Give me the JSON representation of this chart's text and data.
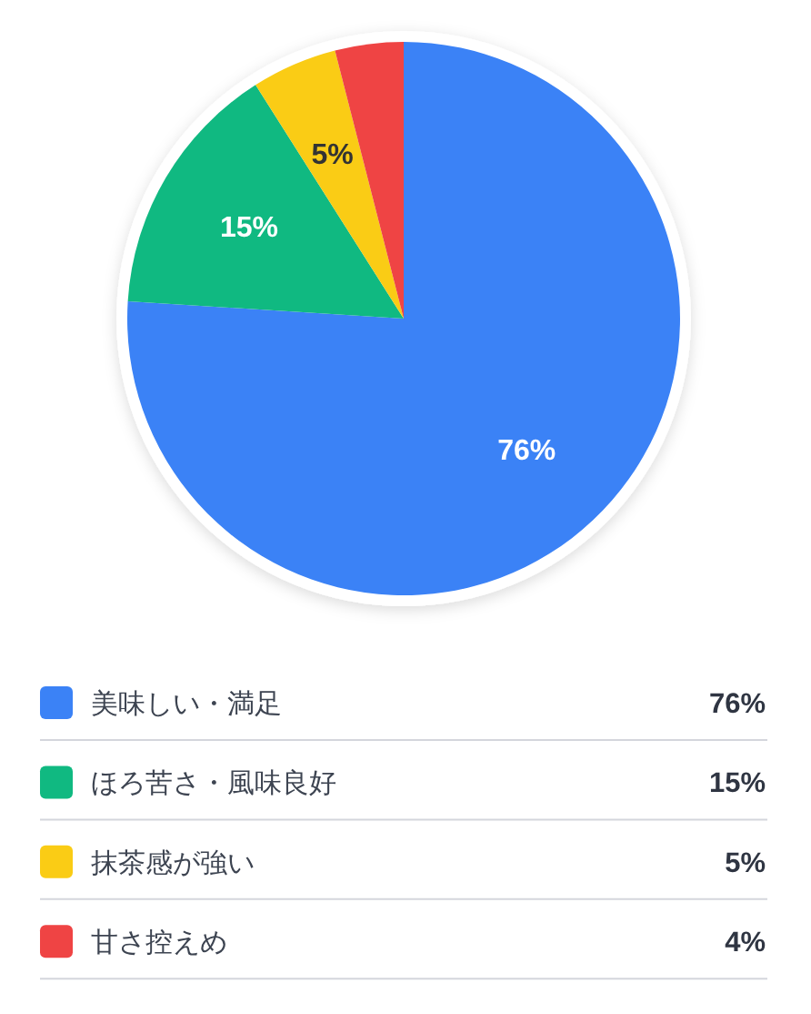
{
  "chart_data": {
    "type": "pie",
    "categories": [
      "美味しい・満足",
      "ほろ苦さ・風味良好",
      "抹茶感が強い",
      "甘さ控えめ"
    ],
    "values": [
      76,
      15,
      5,
      4
    ],
    "colors": [
      "#3b82f6",
      "#10b981",
      "#facc15",
      "#ef4444"
    ],
    "value_labels": [
      "76%",
      "15%",
      "5%",
      "4%"
    ],
    "legend": "bottom"
  }
}
